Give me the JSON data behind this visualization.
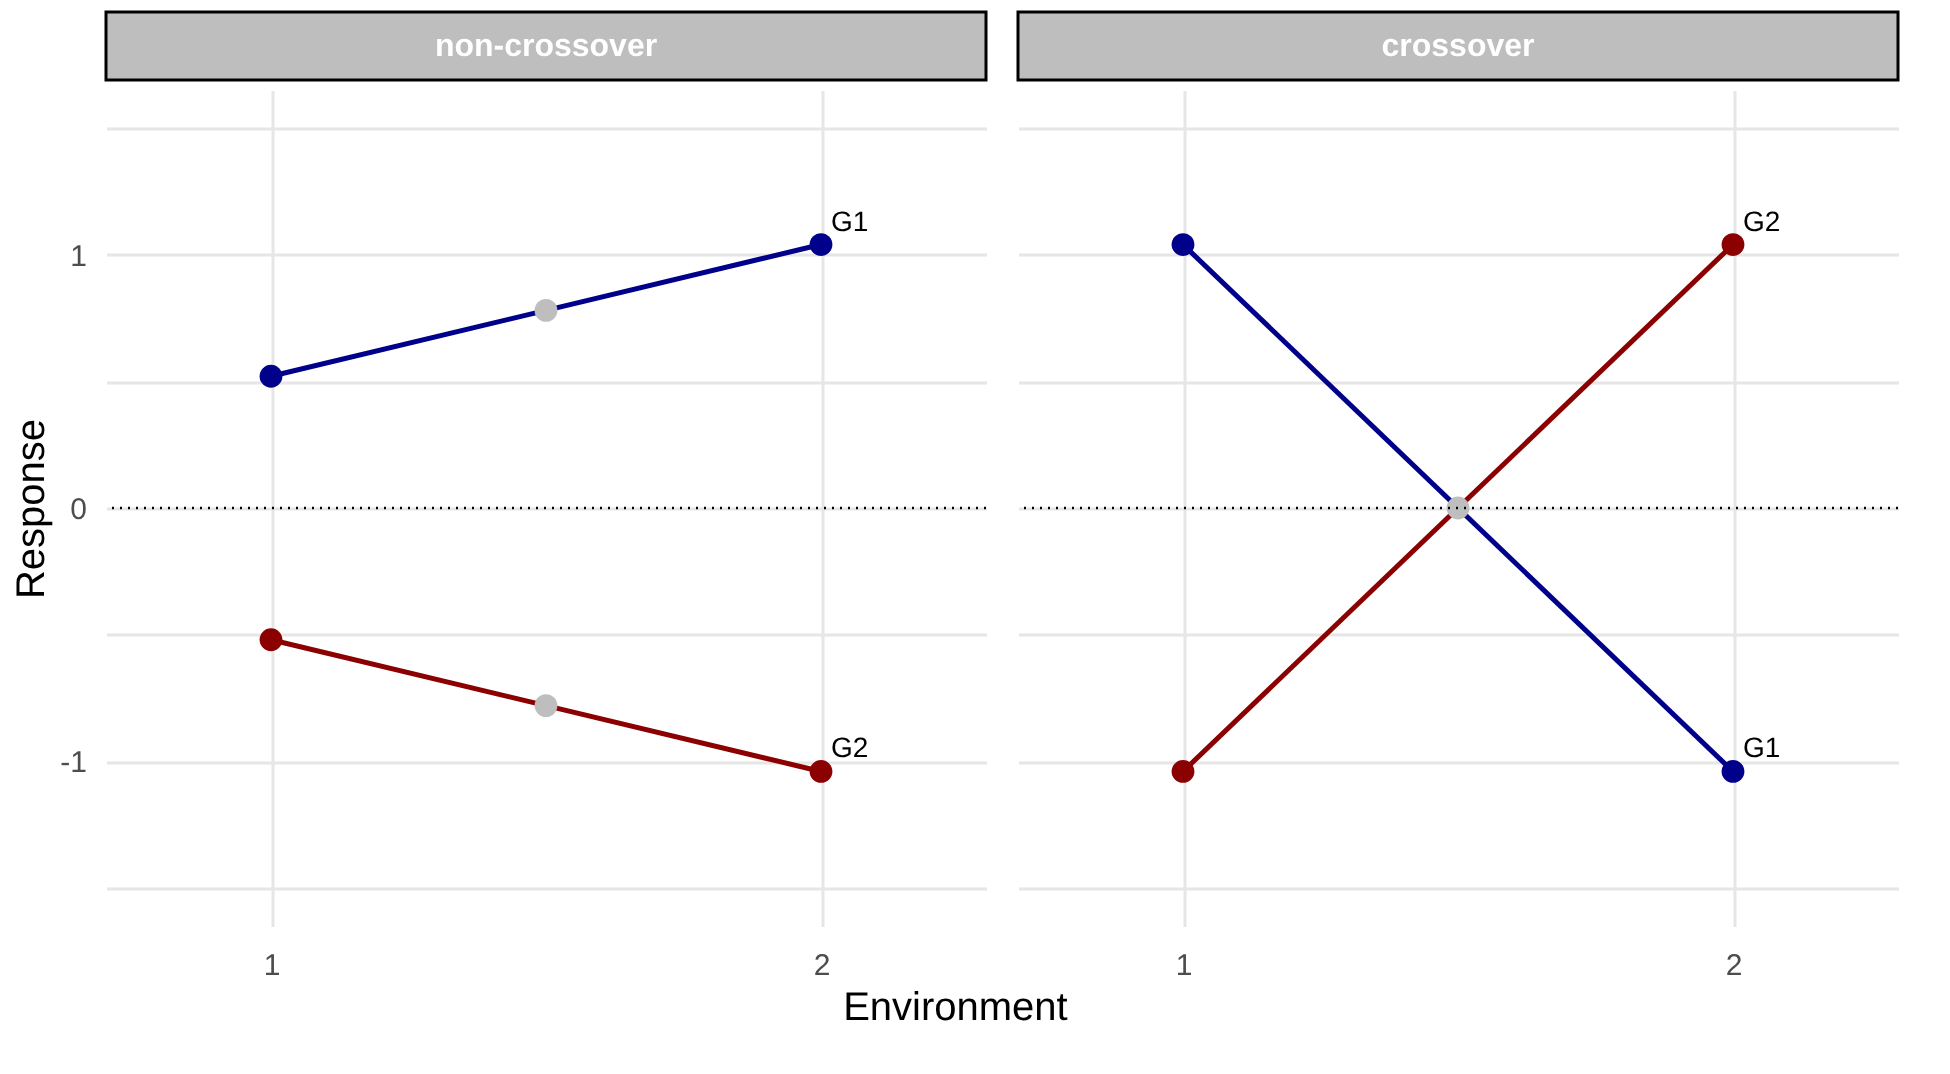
{
  "chart_data": [
    {
      "type": "line",
      "title": "non-crossover",
      "xlabel": "Environment",
      "ylabel": "Response",
      "xlim": [
        0.7,
        2.3
      ],
      "xticks": [
        1,
        2
      ],
      "ylim": [
        -1.65,
        1.65
      ],
      "yticks": [
        {
          "value": -1.5,
          "label": null
        },
        -1,
        {
          "value": -0.5,
          "label": null
        },
        0,
        {
          "value": 0.5,
          "label": null
        },
        1,
        {
          "value": 1.5,
          "label": null
        }
      ],
      "grid": true,
      "marker": "circle",
      "line_style": "solid",
      "series": [
        {
          "name": "G1",
          "color": "#00008b",
          "x": [
            1,
            2
          ],
          "values": [
            0.52,
            1.04
          ]
        },
        {
          "name": "G2",
          "color": "#8b0000",
          "x": [
            1,
            2
          ],
          "values": [
            -0.52,
            -1.04
          ]
        },
        {
          "type": "scatter",
          "color": "#bebebe",
          "x": [
            1.5,
            1.5
          ],
          "values": [
            0.78,
            -0.78
          ]
        }
      ],
      "ref_lines": [
        {
          "axis": "y",
          "value": 0,
          "line_style": "dotted",
          "color": "#000000"
        }
      ]
    },
    {
      "type": "line",
      "title": "crossover",
      "xlim": [
        0.7,
        2.3
      ],
      "xticks": [
        1,
        2
      ],
      "ylim": [
        -1.65,
        1.65
      ],
      "yticks": [
        {
          "value": -1.5,
          "label": null
        },
        -1,
        {
          "value": -0.5,
          "label": null
        },
        0,
        {
          "value": 0.5,
          "label": null
        },
        1,
        {
          "value": 1.5,
          "label": null
        }
      ],
      "grid": true,
      "marker": "circle",
      "line_style": "solid",
      "tick_labels": "x",
      "series": [
        {
          "name": "G1",
          "color": "#00008b",
          "x": [
            1,
            2
          ],
          "values": [
            1.04,
            -1.04
          ]
        },
        {
          "name": "G2",
          "color": "#8b0000",
          "x": [
            1,
            2
          ],
          "values": [
            -1.04,
            1.04
          ]
        },
        {
          "type": "scatter",
          "color": "#bebebe",
          "x": [
            1.5
          ],
          "values": [
            0
          ]
        }
      ],
      "ref_lines": [
        {
          "axis": "y",
          "value": 0,
          "line_style": "dotted",
          "color": "#000000"
        }
      ]
    }
  ]
}
